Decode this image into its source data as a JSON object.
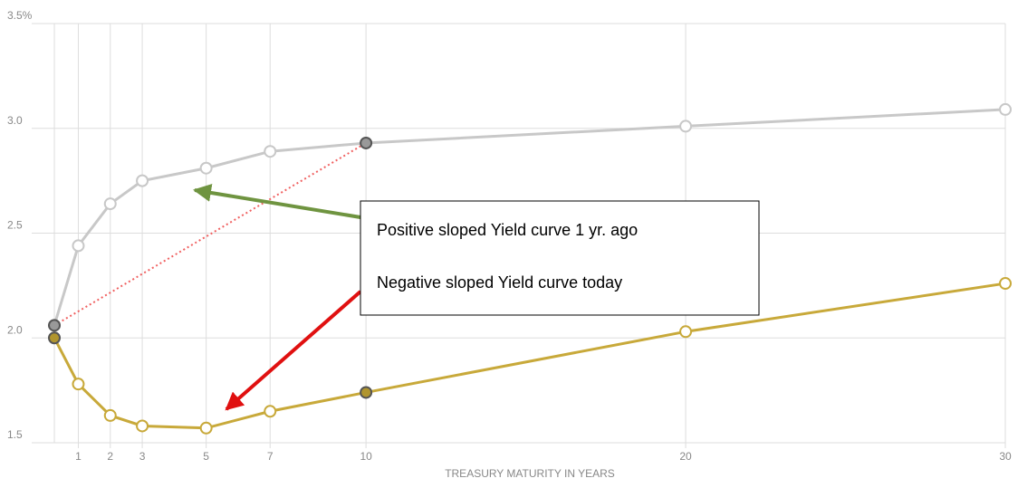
{
  "chart_data": {
    "type": "line",
    "x": [
      0.25,
      1,
      2,
      3,
      5,
      7,
      10,
      20,
      30
    ],
    "series": [
      {
        "name": "Positive sloped Yield curve 1 yr. ago",
        "color": "#c8c8c8",
        "values": [
          2.06,
          2.44,
          2.64,
          2.75,
          2.81,
          2.89,
          2.93,
          3.01,
          3.09
        ]
      },
      {
        "name": "Negative sloped Yield curve today",
        "color": "#c8a93a",
        "values": [
          2.0,
          1.78,
          1.63,
          1.58,
          1.57,
          1.65,
          1.74,
          2.03,
          2.26
        ]
      }
    ],
    "filled_points": [
      0.25,
      10
    ],
    "xlim": [
      0.25,
      30
    ],
    "xticks": [
      1,
      2,
      3,
      5,
      7,
      10,
      20,
      30
    ],
    "ylim": [
      1.5,
      3.5
    ],
    "yticks": [
      1.5,
      {
        "value": 2,
        "label": "2.0"
      },
      2.5,
      {
        "value": 3,
        "label": "3.0"
      },
      {
        "value": 3.5,
        "label": "3.5%"
      }
    ],
    "x_label": "TREASURY MATURITY IN YEARS",
    "grid": true,
    "annotations": [
      "Positive sloped Yield curve 1 yr. ago",
      "Negative sloped Yield curve today"
    ]
  }
}
